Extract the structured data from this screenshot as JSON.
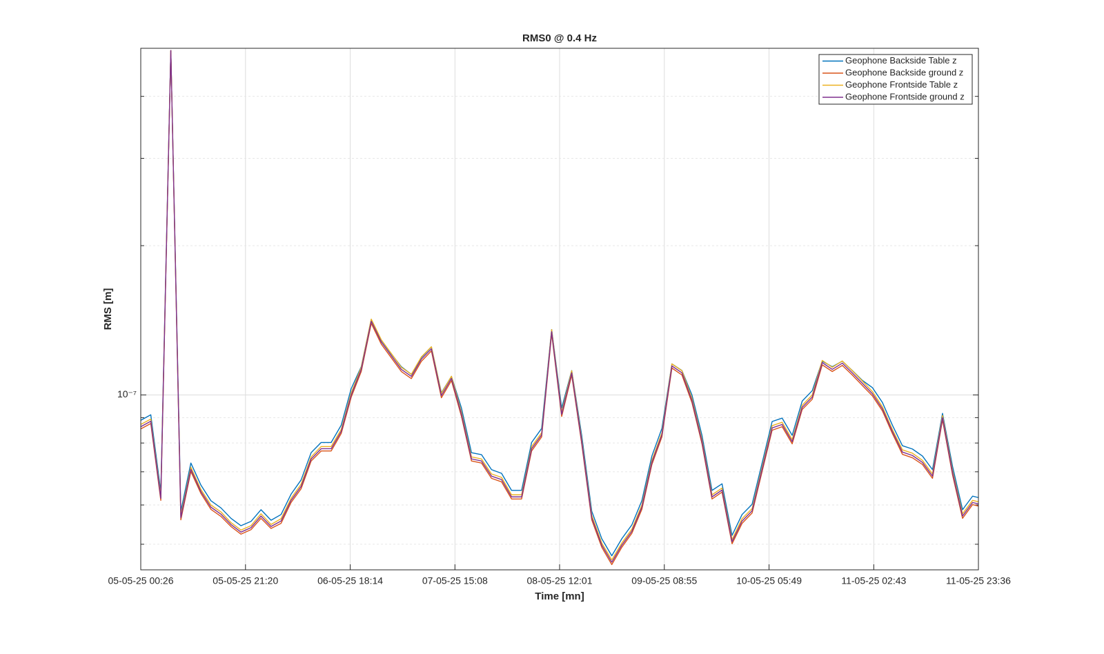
{
  "chart_data": {
    "type": "line",
    "title": "RMS0 @ 0.4 Hz",
    "xlabel": "Time [mn]",
    "ylabel": "RMS [m]",
    "x": [
      "05-05-25 00:26",
      "05-05-25 02:26",
      "05-05-25 04:26",
      "05-05-25 06:26",
      "05-05-25 08:26",
      "05-05-25 10:26",
      "05-05-25 12:26",
      "05-05-25 14:26",
      "05-05-25 16:26",
      "05-05-25 18:26",
      "05-05-25 20:26",
      "05-05-25 22:26",
      "06-05-25 00:26",
      "06-05-25 02:26",
      "06-05-25 04:26",
      "06-05-25 06:26",
      "06-05-25 08:26",
      "06-05-25 10:26",
      "06-05-25 12:26",
      "06-05-25 14:26",
      "06-05-25 16:26",
      "06-05-25 18:26",
      "06-05-25 20:26",
      "06-05-25 22:26",
      "07-05-25 00:26",
      "07-05-25 02:26",
      "07-05-25 04:26",
      "07-05-25 06:26",
      "07-05-25 08:26",
      "07-05-25 10:26",
      "07-05-25 12:26",
      "07-05-25 14:26",
      "07-05-25 16:26",
      "07-05-25 18:26",
      "07-05-25 20:26",
      "07-05-25 22:26",
      "08-05-25 00:26",
      "08-05-25 02:26",
      "08-05-25 04:26",
      "08-05-25 06:26",
      "08-05-25 08:26",
      "08-05-25 10:26",
      "08-05-25 12:26",
      "08-05-25 14:26",
      "08-05-25 16:26",
      "08-05-25 18:26",
      "08-05-25 20:26",
      "08-05-25 22:26",
      "09-05-25 00:26",
      "09-05-25 02:26",
      "09-05-25 04:26",
      "09-05-25 06:26",
      "09-05-25 08:26",
      "09-05-25 10:26",
      "09-05-25 12:26",
      "09-05-25 14:26",
      "09-05-25 16:26",
      "09-05-25 18:26",
      "09-05-25 20:26",
      "09-05-25 22:26",
      "10-05-25 00:26",
      "10-05-25 02:26",
      "10-05-25 04:26",
      "10-05-25 06:26",
      "10-05-25 08:26",
      "10-05-25 10:26",
      "10-05-25 12:26",
      "10-05-25 14:26",
      "10-05-25 16:26",
      "10-05-25 18:26",
      "10-05-25 20:26",
      "10-05-25 22:26",
      "11-05-25 00:26",
      "11-05-25 02:26",
      "11-05-25 04:26",
      "11-05-25 06:26",
      "11-05-25 08:26",
      "11-05-25 10:26",
      "11-05-25 12:26",
      "11-05-25 14:26",
      "11-05-25 16:26",
      "11-05-25 18:26",
      "11-05-25 20:26",
      "11-05-25 22:26",
      "11-05-25 23:36"
    ],
    "series": [
      {
        "name": "Geophone Backside Table z",
        "color": "#0072bd",
        "values": [
          8.89e-08,
          9.12e-08,
          6.38e-08,
          4.95e-07,
          5.83e-08,
          7.29e-08,
          6.58e-08,
          6.12e-08,
          5.92e-08,
          5.64e-08,
          5.45e-08,
          5.56e-08,
          5.87e-08,
          5.59e-08,
          5.74e-08,
          6.31e-08,
          6.74e-08,
          7.65e-08,
          8.02e-08,
          8.02e-08,
          8.69e-08,
          1.03e-07,
          1.14e-07,
          1.42e-07,
          1.29e-07,
          1.21e-07,
          1.14e-07,
          1.1e-07,
          1.19e-07,
          1.25e-07,
          1.01e-07,
          1.09e-07,
          9.41e-08,
          7.65e-08,
          7.58e-08,
          7.07e-08,
          6.95e-08,
          6.42e-08,
          6.42e-08,
          8.02e-08,
          8.56e-08,
          1.355e-07,
          9.41e-08,
          1.12e-07,
          8.29e-08,
          5.83e-08,
          5.13e-08,
          4.74e-08,
          5.13e-08,
          5.47e-08,
          6.12e-08,
          7.53e-08,
          8.56e-08,
          1.155e-07,
          1.12e-07,
          1e-07,
          8.29e-08,
          6.42e-08,
          6.62e-08,
          5.21e-08,
          5.74e-08,
          6.02e-08,
          7.29e-08,
          8.84e-08,
          8.98e-08,
          8.29e-08,
          9.72e-08,
          1.02e-07,
          1.17e-07,
          1.14e-07,
          1.17e-07,
          1.12e-07,
          1.07e-07,
          1.035e-07,
          9.66e-08,
          8.69e-08,
          7.9e-08,
          7.78e-08,
          7.53e-08,
          7.07e-08,
          9.18e-08,
          7.18e-08,
          5.87e-08,
          6.25e-08,
          6.21e-08
        ]
      },
      {
        "name": "Geophone Backside ground z",
        "color": "#d95319",
        "values": [
          8.54e-08,
          8.76e-08,
          6.13e-08,
          4.95e-07,
          5.6e-08,
          7.01e-08,
          6.33e-08,
          5.88e-08,
          5.69e-08,
          5.43e-08,
          5.24e-08,
          5.35e-08,
          5.64e-08,
          5.38e-08,
          5.51e-08,
          6.07e-08,
          6.47e-08,
          7.36e-08,
          7.71e-08,
          7.71e-08,
          8.36e-08,
          9.9e-08,
          1.115e-07,
          1.394e-07,
          1.266e-07,
          1.188e-07,
          1.115e-07,
          1.079e-07,
          1.169e-07,
          1.227e-07,
          9.87e-08,
          1.069e-07,
          9.05e-08,
          7.36e-08,
          7.29e-08,
          6.79e-08,
          6.68e-08,
          6.17e-08,
          6.17e-08,
          7.71e-08,
          8.23e-08,
          1.329e-07,
          9.05e-08,
          1.097e-07,
          7.97e-08,
          5.6e-08,
          4.93e-08,
          4.55e-08,
          4.93e-08,
          5.26e-08,
          5.88e-08,
          7.24e-08,
          8.23e-08,
          1.133e-07,
          1.097e-07,
          9.65e-08,
          7.97e-08,
          6.17e-08,
          6.37e-08,
          5.01e-08,
          5.51e-08,
          5.78e-08,
          7.01e-08,
          8.49e-08,
          8.63e-08,
          7.97e-08,
          9.35e-08,
          9.8e-08,
          1.15e-07,
          1.115e-07,
          1.147e-07,
          1.097e-07,
          1.045e-07,
          9.96e-08,
          9.29e-08,
          8.36e-08,
          7.59e-08,
          7.47e-08,
          7.24e-08,
          6.79e-08,
          8.91e-08,
          6.9e-08,
          5.64e-08,
          6.01e-08,
          5.97e-08
        ]
      },
      {
        "name": "Geophone Frontside Table z",
        "color": "#edb120",
        "values": [
          8.72e-08,
          8.94e-08,
          6.25e-08,
          4.95e-07,
          5.72e-08,
          7.15e-08,
          6.45e-08,
          6e-08,
          5.81e-08,
          5.53e-08,
          5.34e-08,
          5.45e-08,
          5.76e-08,
          5.48e-08,
          5.63e-08,
          6.19e-08,
          6.61e-08,
          7.5e-08,
          7.87e-08,
          7.87e-08,
          8.52e-08,
          1.01e-07,
          1.137e-07,
          1.422e-07,
          1.292e-07,
          1.212e-07,
          1.137e-07,
          1.101e-07,
          1.193e-07,
          1.251e-07,
          1.007e-07,
          1.091e-07,
          9.23e-08,
          7.5e-08,
          7.43e-08,
          6.93e-08,
          6.82e-08,
          6.29e-08,
          6.29e-08,
          7.87e-08,
          8.39e-08,
          1.355e-07,
          9.23e-08,
          1.119e-07,
          8.13e-08,
          5.72e-08,
          5.03e-08,
          4.65e-08,
          5.03e-08,
          5.36e-08,
          6e-08,
          7.38e-08,
          8.39e-08,
          1.155e-07,
          1.119e-07,
          9.85e-08,
          8.13e-08,
          6.29e-08,
          6.49e-08,
          5.11e-08,
          5.63e-08,
          5.9e-08,
          7.15e-08,
          8.67e-08,
          8.81e-08,
          8.13e-08,
          9.53e-08,
          1e-07,
          1.174e-07,
          1.137e-07,
          1.171e-07,
          1.119e-07,
          1.067e-07,
          1.016e-07,
          9.47e-08,
          8.52e-08,
          7.75e-08,
          7.63e-08,
          7.38e-08,
          6.93e-08,
          9.09e-08,
          7.04e-08,
          5.76e-08,
          6.13e-08,
          6.09e-08
        ]
      },
      {
        "name": "Geophone Frontside ground z",
        "color": "#7e2f8e",
        "values": [
          8.63e-08,
          8.85e-08,
          6.19e-08,
          4.95e-07,
          5.66e-08,
          7.08e-08,
          6.39e-08,
          5.94e-08,
          5.75e-08,
          5.48e-08,
          5.29e-08,
          5.4e-08,
          5.7e-08,
          5.43e-08,
          5.57e-08,
          6.13e-08,
          6.54e-08,
          7.43e-08,
          7.79e-08,
          7.79e-08,
          8.44e-08,
          1e-07,
          1.126e-07,
          1.408e-07,
          1.279e-07,
          1.2e-07,
          1.126e-07,
          1.09e-07,
          1.181e-07,
          1.239e-07,
          9.97e-08,
          1.08e-07,
          9.14e-08,
          7.43e-08,
          7.36e-08,
          6.86e-08,
          6.75e-08,
          6.23e-08,
          6.23e-08,
          7.79e-08,
          8.31e-08,
          1.342e-07,
          9.14e-08,
          1.108e-07,
          8.05e-08,
          5.66e-08,
          4.98e-08,
          4.6e-08,
          4.98e-08,
          5.31e-08,
          5.94e-08,
          7.31e-08,
          8.31e-08,
          1.144e-07,
          1.108e-07,
          9.75e-08,
          8.05e-08,
          6.23e-08,
          6.43e-08,
          5.06e-08,
          5.57e-08,
          5.84e-08,
          7.08e-08,
          8.58e-08,
          8.72e-08,
          8.05e-08,
          9.44e-08,
          9.9e-08,
          1.162e-07,
          1.126e-07,
          1.159e-07,
          1.108e-07,
          1.056e-07,
          1.006e-07,
          9.38e-08,
          8.44e-08,
          7.67e-08,
          7.55e-08,
          7.31e-08,
          6.86e-08,
          9e-08,
          6.97e-08,
          5.7e-08,
          6.07e-08,
          6.03e-08
        ]
      }
    ],
    "xlim": [
      "05-05-25 00:26",
      "11-05-25 23:36"
    ],
    "xticks": [
      "05-05-25 00:26",
      "05-05-25 21:20",
      "06-05-25 18:14",
      "07-05-25 15:08",
      "08-05-25 12:01",
      "09-05-25 08:55",
      "10-05-25 05:49",
      "11-05-25 02:43",
      "11-05-25 23:36"
    ],
    "ylim": [
      4.44e-08,
      5e-07
    ],
    "log_y": true,
    "yticks": [
      {
        "value": 1e-07,
        "label": "10⁻⁷"
      }
    ],
    "yminorticks": [
      5e-08,
      6e-08,
      7e-08,
      8e-08,
      9e-08,
      2e-07,
      3e-07,
      4e-07
    ],
    "grid": true,
    "legend": "northeast"
  }
}
